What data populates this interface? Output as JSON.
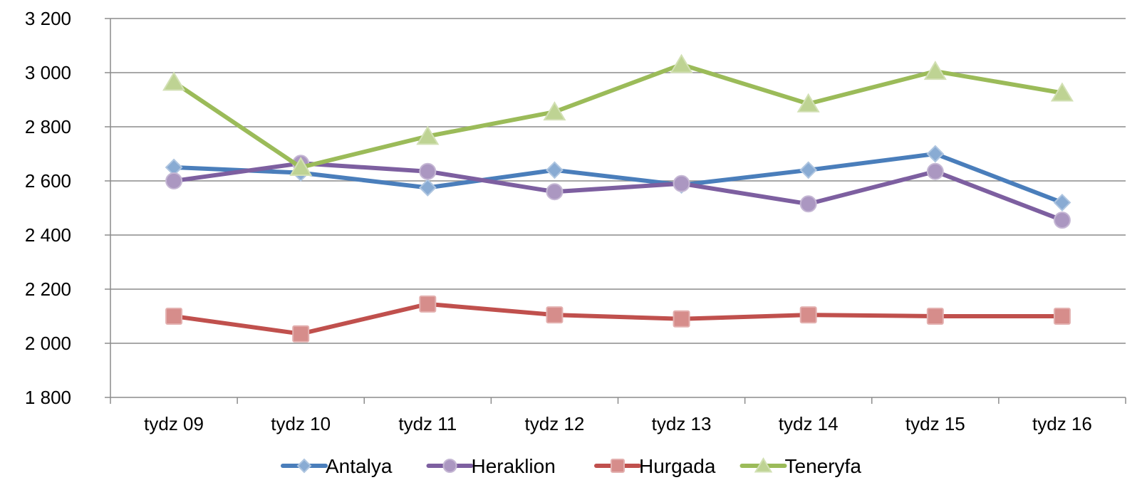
{
  "chart_data": {
    "type": "line",
    "title": "",
    "xlabel": "",
    "ylabel": "",
    "categories": [
      "tydz 09",
      "tydz 10",
      "tydz 11",
      "tydz 12",
      "tydz 13",
      "tydz 14",
      "tydz 15",
      "tydz 16"
    ],
    "ylim": [
      1800,
      3200
    ],
    "yticks": [
      1800,
      2000,
      2200,
      2400,
      2600,
      2800,
      3000,
      3200
    ],
    "ytick_labels": [
      "1 800",
      "2 000",
      "2 200",
      "2 400",
      "2 600",
      "2 800",
      "3 000",
      "3 200"
    ],
    "grid": true,
    "legend_position": "bottom",
    "series": [
      {
        "name": "Antalya",
        "color": "#4a7ebb",
        "marker": "diamond",
        "values": [
          2650,
          2630,
          2575,
          2640,
          2585,
          2640,
          2700,
          2520
        ]
      },
      {
        "name": "Heraklion",
        "color": "#7d5fa0",
        "marker": "circle",
        "values": [
          2600,
          2665,
          2635,
          2560,
          2590,
          2515,
          2635,
          2455
        ]
      },
      {
        "name": "Hurgada",
        "color": "#c0504d",
        "marker": "square",
        "values": [
          2100,
          2035,
          2145,
          2105,
          2090,
          2105,
          2100,
          2100
        ]
      },
      {
        "name": "Teneryfa",
        "color": "#9bbb59",
        "marker": "triangle",
        "values": [
          2965,
          2650,
          2765,
          2855,
          3030,
          2885,
          3005,
          2925
        ]
      }
    ]
  }
}
